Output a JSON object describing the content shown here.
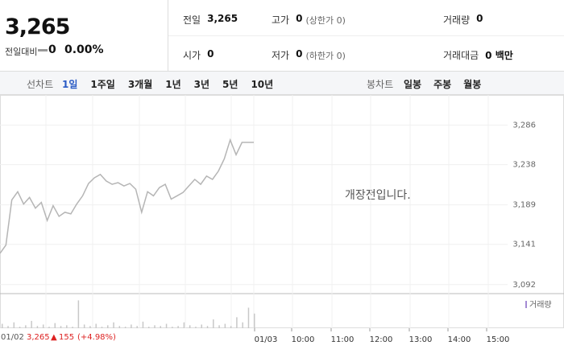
{
  "header": {
    "price": "3,265",
    "change_label": "전일대비",
    "change": "0",
    "change_rate": "0.00%"
  },
  "info": [
    [
      {
        "label": "전일",
        "value": "3,265"
      },
      {
        "label": "고가",
        "value": "0",
        "note": "(상한가 0)"
      },
      {
        "label": "거래량",
        "value": "0"
      }
    ],
    [
      {
        "label": "시가",
        "value": "0"
      },
      {
        "label": "저가",
        "value": "0",
        "note": "(하한가 0)"
      },
      {
        "label": "거래대금",
        "value": "0 백만"
      }
    ]
  ],
  "tabs": {
    "line_label": "선차트",
    "line": [
      "1일",
      "1주일",
      "3개월",
      "1년",
      "3년",
      "5년",
      "10년"
    ],
    "candle_label": "봉차트",
    "candle": [
      "일봉",
      "주봉",
      "월봉"
    ]
  },
  "notice": "개장전입니다.",
  "status": {
    "date": "01/02",
    "price": "3,265",
    "change": "155",
    "rate": "(+4.98%)"
  },
  "chart_data": {
    "type": "line",
    "x_labels": [
      "01/03",
      "10:00",
      "11:00",
      "12:00",
      "13:00",
      "14:00",
      "15:00"
    ],
    "series": [
      {
        "color": "#b5b5b5",
        "values": [
          3130,
          3140,
          3195,
          3205,
          3190,
          3198,
          3185,
          3192,
          3170,
          3188,
          3175,
          3180,
          3178,
          3190,
          3200,
          3215,
          3222,
          3226,
          3218,
          3214,
          3216,
          3212,
          3215,
          3208,
          3180,
          3205,
          3200,
          3210,
          3214,
          3196,
          3200,
          3204,
          3212,
          3220,
          3214,
          3224,
          3220,
          3230,
          3245,
          3268,
          3250,
          3265,
          3265,
          3265
        ]
      }
    ],
    "ylim": [
      3081,
      3311
    ],
    "yticks": [
      {
        "value": 3092,
        "label": "3,092"
      },
      {
        "value": 3141,
        "label": "3,141"
      },
      {
        "value": 3189,
        "label": "3,189"
      },
      {
        "value": 3238,
        "label": "3,238"
      },
      {
        "value": 3286,
        "label": "3,286"
      }
    ],
    "volume": {
      "legend": "거래량",
      "color": "#c8c8c8",
      "ylim": [
        0,
        45
      ],
      "values": [
        6,
        3,
        8,
        2,
        4,
        10,
        3,
        5,
        2,
        7,
        3,
        4,
        2,
        38,
        5,
        3,
        6,
        2,
        4,
        8,
        3,
        2,
        5,
        3,
        9,
        2,
        4,
        3,
        6,
        2,
        3,
        8,
        4,
        2,
        5,
        3,
        12,
        4,
        6,
        3,
        15,
        8,
        28,
        20
      ]
    }
  }
}
